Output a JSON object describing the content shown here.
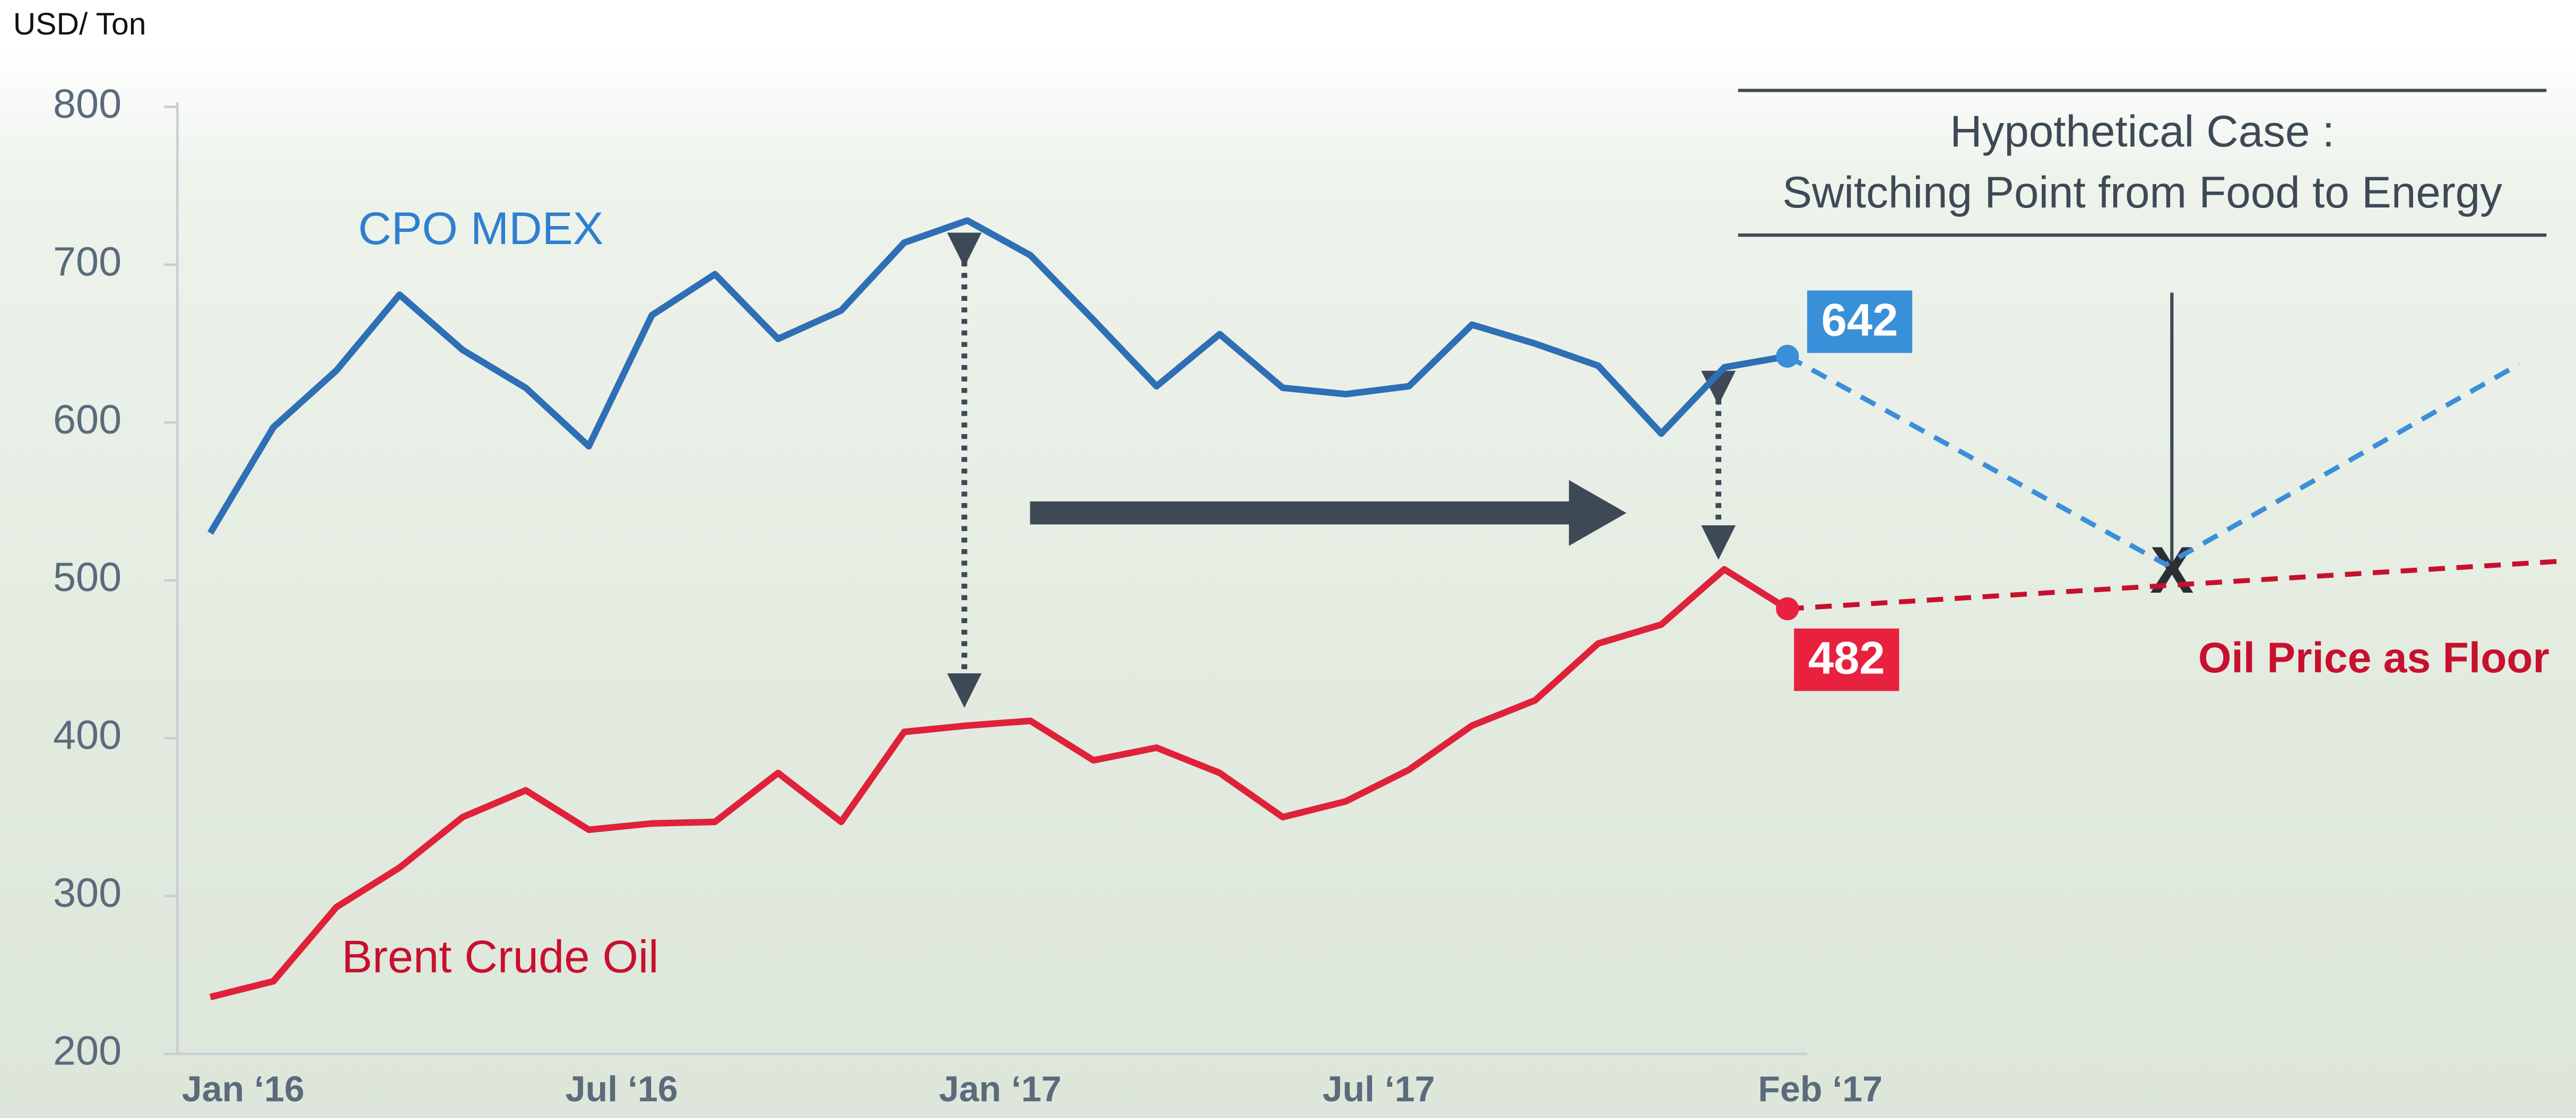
{
  "chart_data": {
    "type": "line",
    "y_label": "USD/ Ton",
    "ylim": [
      200,
      800
    ],
    "yticks": [
      200,
      300,
      400,
      500,
      600,
      700,
      800
    ],
    "categories": [
      "Jan ‘16",
      null,
      null,
      null,
      null,
      null,
      "Jul ‘16",
      null,
      null,
      null,
      null,
      null,
      "Jan ‘17",
      null,
      null,
      null,
      null,
      null,
      "Jul ‘17",
      null,
      null,
      null,
      null,
      null,
      null,
      "Feb ‘17"
    ],
    "series": [
      {
        "name": "CPO MDEX",
        "color": "#2e6fb5",
        "label_color": "#2e7fd0",
        "box_color": "#3a8fd9",
        "values": [
          530,
          597,
          633,
          681,
          646,
          622,
          585,
          668,
          694,
          653,
          671,
          714,
          728,
          706,
          665,
          623,
          656,
          622,
          618,
          623,
          662,
          650,
          636,
          593,
          635,
          642
        ]
      },
      {
        "name": "Brent Crude Oil",
        "color": "#e0213a",
        "label_color": "#c8102e",
        "box_color": "#e8213e",
        "values": [
          236,
          246,
          293,
          318,
          350,
          367,
          342,
          346,
          347,
          378,
          347,
          404,
          408,
          411,
          386,
          394,
          378,
          350,
          360,
          380,
          408,
          424,
          460,
          472,
          507,
          482
        ]
      }
    ],
    "projections": [
      {
        "color": "#3a8fd9",
        "x": [
          25,
          31,
          36.6
        ],
        "values": [
          642,
          510,
          637
        ]
      },
      {
        "color": "#c8102e",
        "x": [
          25,
          37.2
        ],
        "values": [
          482,
          512
        ]
      }
    ],
    "annotation": {
      "title_lines": [
        "Hypothetical Case :",
        "Switching Point from Food to Energy"
      ],
      "floor_label": "Oil Price as Floor",
      "marker": "X"
    }
  }
}
